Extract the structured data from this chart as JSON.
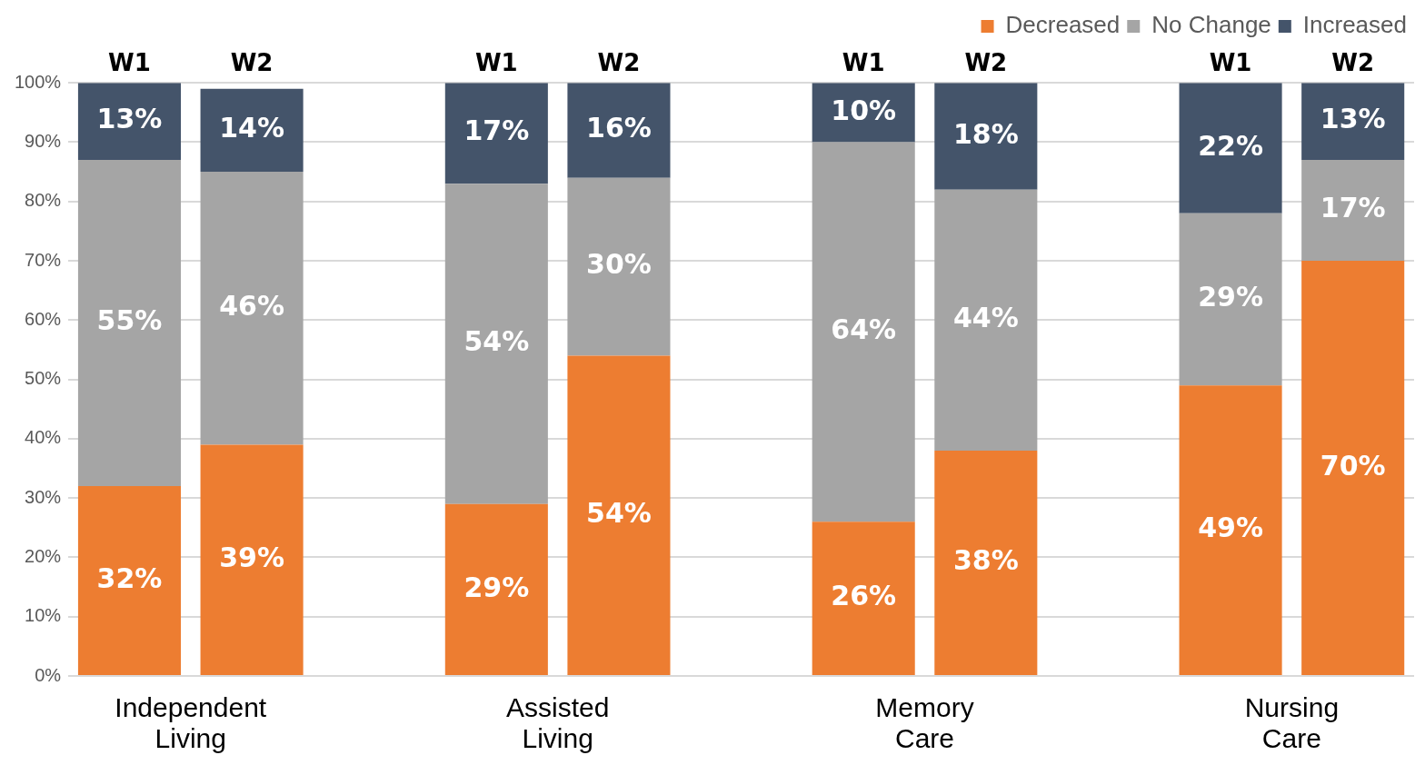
{
  "chart_data": {
    "type": "bar",
    "stacked": true,
    "categories": [
      "W1",
      "W2",
      null,
      "W1",
      "W2",
      null,
      "W1",
      "W2",
      null,
      "W1",
      "W2"
    ],
    "series": [
      {
        "name": "Decreased",
        "color": "#ed7d31",
        "values": [
          32,
          39,
          null,
          29,
          54,
          null,
          26,
          38,
          null,
          49,
          70
        ],
        "value_labels": [
          "32%",
          "39%",
          null,
          "29%",
          "54%",
          null,
          "26%",
          "38%",
          null,
          "49%",
          "70%"
        ]
      },
      {
        "name": "No Change",
        "color": "#a5a5a5",
        "values": [
          55,
          46,
          null,
          54,
          30,
          null,
          64,
          44,
          null,
          29,
          17
        ],
        "value_labels": [
          "55%",
          "46%",
          null,
          "54%",
          "30%",
          null,
          "64%",
          "44%",
          null,
          "29%",
          "17%"
        ]
      },
      {
        "name": "Increased",
        "color": "#44546a",
        "values": [
          13,
          14,
          null,
          17,
          16,
          null,
          10,
          18,
          null,
          22,
          13
        ],
        "value_labels": [
          "13%",
          "14%",
          null,
          "17%",
          "16%",
          null,
          "10%",
          "18%",
          null,
          "22%",
          "13%"
        ]
      }
    ],
    "ylim": [
      0,
      100
    ],
    "yticks": [
      {
        "value": 0,
        "label": "0%"
      },
      {
        "value": 10,
        "label": "10%"
      },
      {
        "value": 20,
        "label": "20%"
      },
      {
        "value": 30,
        "label": "30%"
      },
      {
        "value": 40,
        "label": "40%"
      },
      {
        "value": 50,
        "label": "50%"
      },
      {
        "value": 60,
        "label": "60%"
      },
      {
        "value": 70,
        "label": "70%"
      },
      {
        "value": 80,
        "label": "80%"
      },
      {
        "value": 90,
        "label": "90%"
      },
      {
        "value": 100,
        "label": "100%"
      }
    ],
    "grid": "y",
    "legend": "top right",
    "annotations": [
      "Independent Living",
      "Assisted Living",
      "Memory Care",
      "Nursing Care"
    ]
  }
}
